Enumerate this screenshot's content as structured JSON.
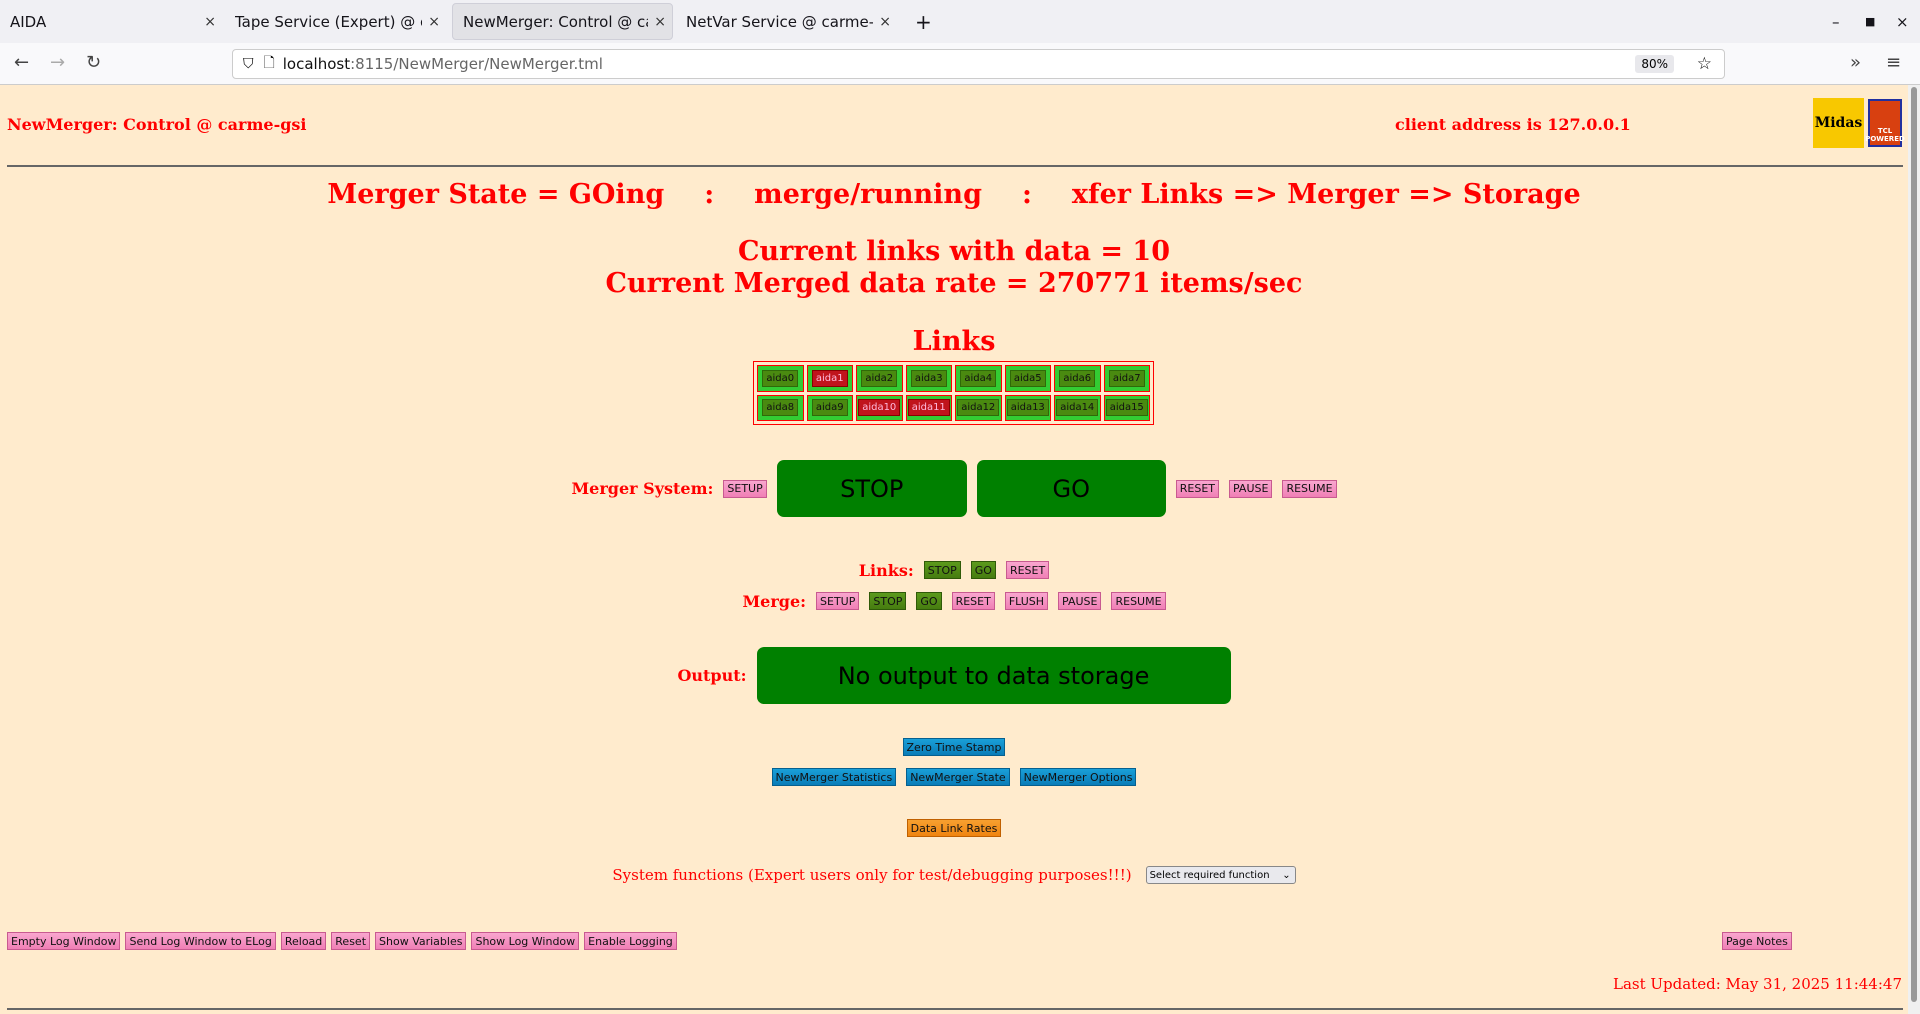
{
  "browser": {
    "tabs": [
      {
        "label": "AIDA",
        "active": false
      },
      {
        "label": "Tape Service (Expert) @ carme-gsi",
        "active": false
      },
      {
        "label": "NewMerger: Control @ carme-gsi",
        "active": true
      },
      {
        "label": "NetVar Service @ carme-gsi",
        "active": false
      }
    ],
    "url_host": "localhost",
    "url_path": ":8115/NewMerger/NewMerger.tml",
    "zoom": "80%"
  },
  "header": {
    "title": "NewMerger: Control @ carme-gsi",
    "client": "client address is 127.0.0.1",
    "logo_text": "Midas",
    "logo2_text": "TCL POWERED"
  },
  "state": {
    "line1": "Merger State = GOing",
    "line2": "merge/running",
    "line3": "xfer Links => Merger => Storage",
    "sep": ":"
  },
  "stats": {
    "links": "Current links with data = 10",
    "rate": "Current Merged data rate = 270771 items/sec"
  },
  "links": {
    "title": "Links",
    "items": [
      {
        "label": "aida0",
        "status": "ok"
      },
      {
        "label": "aida1",
        "status": "bad"
      },
      {
        "label": "aida2",
        "status": "ok"
      },
      {
        "label": "aida3",
        "status": "ok"
      },
      {
        "label": "aida4",
        "status": "ok"
      },
      {
        "label": "aida5",
        "status": "ok"
      },
      {
        "label": "aida6",
        "status": "ok"
      },
      {
        "label": "aida7",
        "status": "ok"
      },
      {
        "label": "aida8",
        "status": "ok"
      },
      {
        "label": "aida9",
        "status": "ok"
      },
      {
        "label": "aida10",
        "status": "bad"
      },
      {
        "label": "aida11",
        "status": "bad"
      },
      {
        "label": "aida12",
        "status": "ok"
      },
      {
        "label": "aida13",
        "status": "ok"
      },
      {
        "label": "aida14",
        "status": "ok"
      },
      {
        "label": "aida15",
        "status": "ok"
      }
    ]
  },
  "merger_system": {
    "label": "Merger System:",
    "setup": "SETUP",
    "stop": "STOP",
    "go": "GO",
    "reset": "RESET",
    "pause": "PAUSE",
    "resume": "RESUME"
  },
  "links_ctrl": {
    "label": "Links:",
    "stop": "STOP",
    "go": "GO",
    "reset": "RESET"
  },
  "merge_ctrl": {
    "label": "Merge:",
    "setup": "SETUP",
    "stop": "STOP",
    "go": "GO",
    "reset": "RESET",
    "flush": "FLUSH",
    "pause": "PAUSE",
    "resume": "RESUME"
  },
  "output": {
    "label": "Output:",
    "value": "No output to data storage"
  },
  "tools": {
    "zero": "Zero Time Stamp",
    "stats": "NewMerger Statistics",
    "state": "NewMerger State",
    "options": "NewMerger Options",
    "rates": "Data Link Rates"
  },
  "system": {
    "label": "System functions (Expert users only for test/debugging purposes!!!)",
    "select": "Select required function"
  },
  "footer": {
    "buttons": [
      "Empty Log Window",
      "Send Log Window to ELog",
      "Reload",
      "Reset",
      "Show Variables",
      "Show Log Window",
      "Enable Logging"
    ],
    "notes": "Page Notes",
    "updated": "Last Updated: May 31, 2025 11:44:47"
  },
  "colors": {
    "background": "#ffebcd",
    "text": "#ff0000",
    "go_green": "#008000"
  }
}
